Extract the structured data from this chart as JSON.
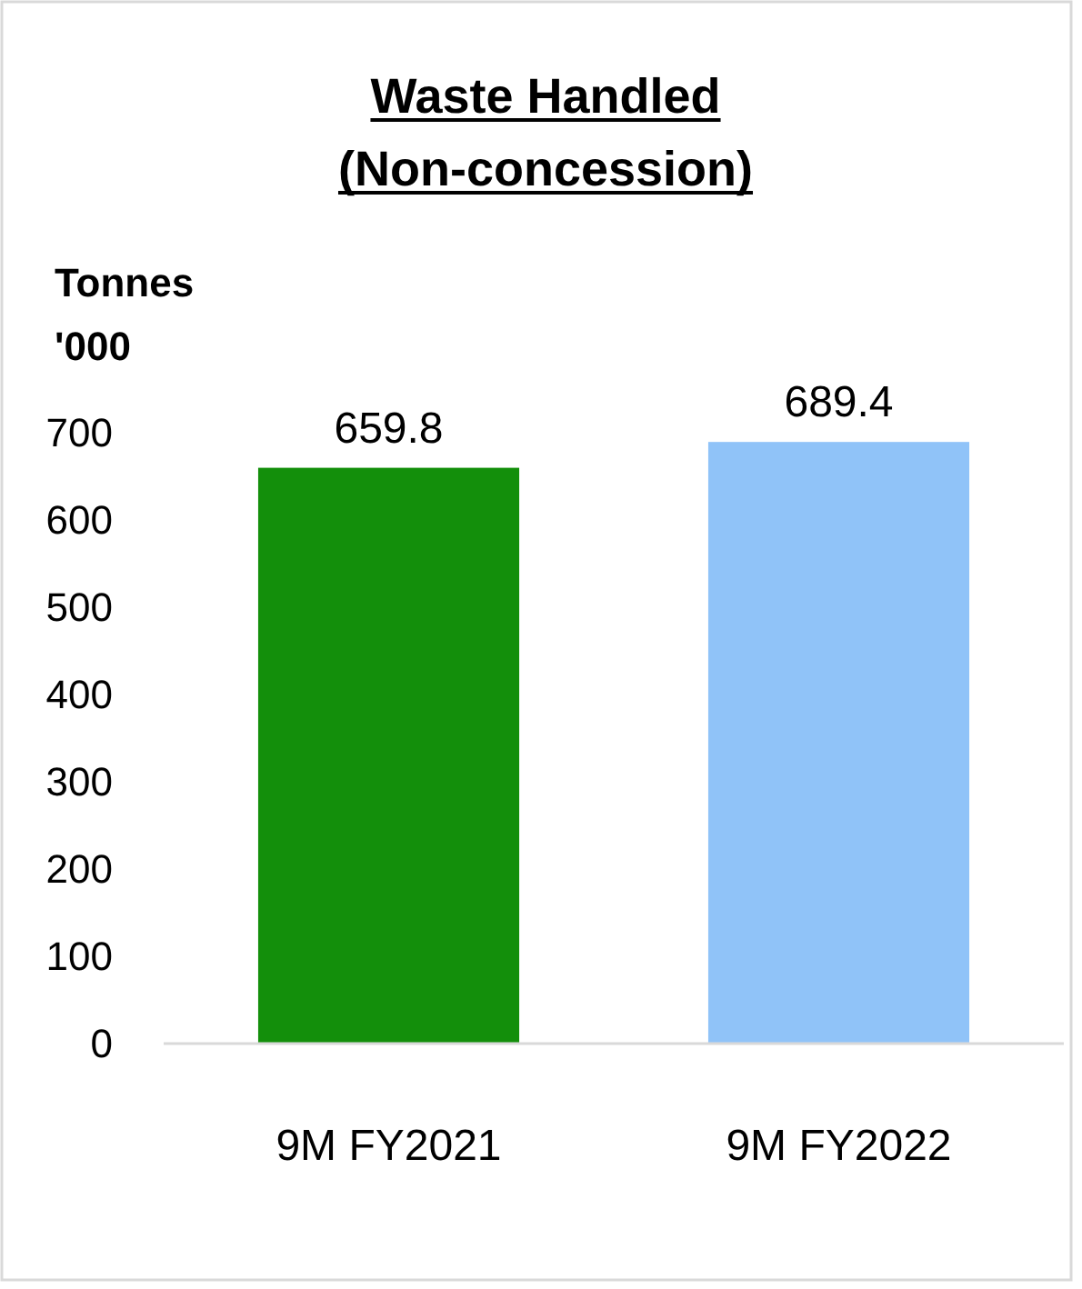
{
  "chart_data": {
    "type": "bar",
    "title": "Waste Handled (Non-concession)",
    "ylabel": "Tonnes '000",
    "categories": [
      "9M FY2021",
      "9M FY2022"
    ],
    "values": [
      659.8,
      689.4
    ],
    "colors": [
      "#138f0b",
      "#90c3f8"
    ],
    "ylim": [
      0,
      700
    ],
    "yticks": [
      0,
      100,
      200,
      300,
      400,
      500,
      600,
      700
    ],
    "grid": false,
    "data_labels": true
  }
}
